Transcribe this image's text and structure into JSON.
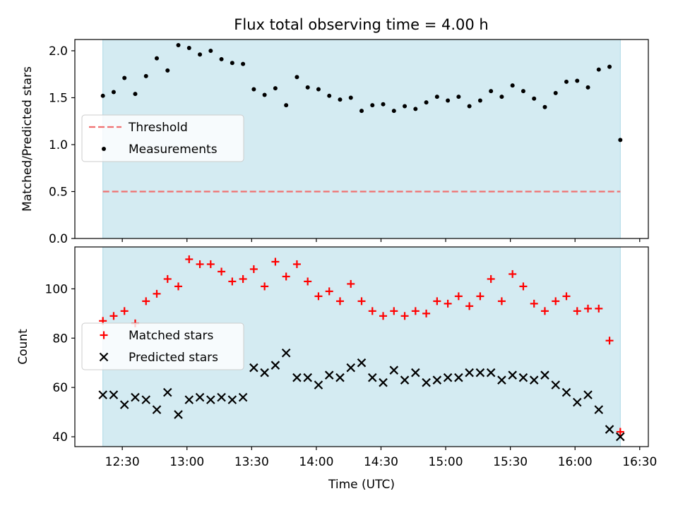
{
  "chart_data": [
    {
      "type": "scatter",
      "title": "Flux total observing time = 4.00 h",
      "xlabel": "",
      "ylabel": "Matched/Predicted stars",
      "ylim": [
        0,
        2.12
      ],
      "yticks": [
        "0.0",
        "0.5",
        "1.0",
        "1.5",
        "2.0"
      ],
      "legend_position": "center-left",
      "shaded_span": {
        "start": "12:21",
        "end": "16:21",
        "color": "#add8e6"
      },
      "threshold": {
        "name": "Threshold",
        "value": 0.5,
        "color": "#f07070",
        "style": "dashed"
      },
      "series": [
        {
          "name": "Measurements",
          "marker": "dot",
          "color": "#000000",
          "points": [
            [
              "12:21",
              1.52
            ],
            [
              "12:26",
              1.56
            ],
            [
              "12:31",
              1.71
            ],
            [
              "12:36",
              1.54
            ],
            [
              "12:41",
              1.73
            ],
            [
              "12:46",
              1.92
            ],
            [
              "12:51",
              1.79
            ],
            [
              "12:56",
              2.06
            ],
            [
              "13:01",
              2.03
            ],
            [
              "13:06",
              1.96
            ],
            [
              "13:11",
              2.0
            ],
            [
              "13:16",
              1.91
            ],
            [
              "13:21",
              1.87
            ],
            [
              "13:26",
              1.86
            ],
            [
              "13:31",
              1.59
            ],
            [
              "13:36",
              1.53
            ],
            [
              "13:41",
              1.6
            ],
            [
              "13:46",
              1.42
            ],
            [
              "13:51",
              1.72
            ],
            [
              "13:56",
              1.61
            ],
            [
              "14:01",
              1.59
            ],
            [
              "14:06",
              1.52
            ],
            [
              "14:11",
              1.48
            ],
            [
              "14:16",
              1.5
            ],
            [
              "14:21",
              1.36
            ],
            [
              "14:26",
              1.42
            ],
            [
              "14:31",
              1.43
            ],
            [
              "14:36",
              1.36
            ],
            [
              "14:41",
              1.41
            ],
            [
              "14:46",
              1.38
            ],
            [
              "14:51",
              1.45
            ],
            [
              "14:56",
              1.51
            ],
            [
              "15:01",
              1.47
            ],
            [
              "15:06",
              1.51
            ],
            [
              "15:11",
              1.41
            ],
            [
              "15:16",
              1.47
            ],
            [
              "15:21",
              1.57
            ],
            [
              "15:26",
              1.51
            ],
            [
              "15:31",
              1.63
            ],
            [
              "15:36",
              1.57
            ],
            [
              "15:41",
              1.49
            ],
            [
              "15:46",
              1.4
            ],
            [
              "15:51",
              1.55
            ],
            [
              "15:56",
              1.67
            ],
            [
              "16:01",
              1.68
            ],
            [
              "16:06",
              1.61
            ],
            [
              "16:11",
              1.8
            ],
            [
              "16:16",
              1.83
            ],
            [
              "16:21",
              1.05
            ]
          ]
        }
      ]
    },
    {
      "type": "scatter",
      "title": "",
      "xlabel": "Time (UTC)",
      "ylabel": "Count",
      "ylim": [
        36,
        117
      ],
      "yticks": [
        "40",
        "60",
        "80",
        "100"
      ],
      "xlim": [
        "12:08",
        "16:34"
      ],
      "xticks": [
        "12:30",
        "13:00",
        "13:30",
        "14:00",
        "14:30",
        "15:00",
        "15:30",
        "16:00",
        "16:30"
      ],
      "legend_position": "center-left",
      "shaded_span": {
        "start": "12:21",
        "end": "16:21",
        "color": "#add8e6"
      },
      "series": [
        {
          "name": "Matched stars",
          "marker": "plus",
          "color": "#ff0000",
          "points": [
            [
              "12:21",
              87
            ],
            [
              "12:26",
              89
            ],
            [
              "12:31",
              91
            ],
            [
              "12:36",
              86
            ],
            [
              "12:41",
              95
            ],
            [
              "12:46",
              98
            ],
            [
              "12:51",
              104
            ],
            [
              "12:56",
              101
            ],
            [
              "13:01",
              112
            ],
            [
              "13:06",
              110
            ],
            [
              "13:11",
              110
            ],
            [
              "13:16",
              107
            ],
            [
              "13:21",
              103
            ],
            [
              "13:26",
              104
            ],
            [
              "13:31",
              108
            ],
            [
              "13:36",
              101
            ],
            [
              "13:41",
              111
            ],
            [
              "13:46",
              105
            ],
            [
              "13:51",
              110
            ],
            [
              "13:56",
              103
            ],
            [
              "14:01",
              97
            ],
            [
              "14:06",
              99
            ],
            [
              "14:11",
              95
            ],
            [
              "14:16",
              102
            ],
            [
              "14:21",
              95
            ],
            [
              "14:26",
              91
            ],
            [
              "14:31",
              89
            ],
            [
              "14:36",
              91
            ],
            [
              "14:41",
              89
            ],
            [
              "14:46",
              91
            ],
            [
              "14:51",
              90
            ],
            [
              "14:56",
              95
            ],
            [
              "15:01",
              94
            ],
            [
              "15:06",
              97
            ],
            [
              "15:11",
              93
            ],
            [
              "15:16",
              97
            ],
            [
              "15:21",
              104
            ],
            [
              "15:26",
              95
            ],
            [
              "15:31",
              106
            ],
            [
              "15:36",
              101
            ],
            [
              "15:41",
              94
            ],
            [
              "15:46",
              91
            ],
            [
              "15:51",
              95
            ],
            [
              "15:56",
              97
            ],
            [
              "16:01",
              91
            ],
            [
              "16:06",
              92
            ],
            [
              "16:11",
              92
            ],
            [
              "16:16",
              79
            ],
            [
              "16:21",
              42
            ]
          ]
        },
        {
          "name": "Predicted stars",
          "marker": "x",
          "color": "#000000",
          "points": [
            [
              "12:21",
              57
            ],
            [
              "12:26",
              57
            ],
            [
              "12:31",
              53
            ],
            [
              "12:36",
              56
            ],
            [
              "12:41",
              55
            ],
            [
              "12:46",
              51
            ],
            [
              "12:51",
              58
            ],
            [
              "12:56",
              49
            ],
            [
              "13:01",
              55
            ],
            [
              "13:06",
              56
            ],
            [
              "13:11",
              55
            ],
            [
              "13:16",
              56
            ],
            [
              "13:21",
              55
            ],
            [
              "13:26",
              56
            ],
            [
              "13:31",
              68
            ],
            [
              "13:36",
              66
            ],
            [
              "13:41",
              69
            ],
            [
              "13:46",
              74
            ],
            [
              "13:51",
              64
            ],
            [
              "13:56",
              64
            ],
            [
              "14:01",
              61
            ],
            [
              "14:06",
              65
            ],
            [
              "14:11",
              64
            ],
            [
              "14:16",
              68
            ],
            [
              "14:21",
              70
            ],
            [
              "14:26",
              64
            ],
            [
              "14:31",
              62
            ],
            [
              "14:36",
              67
            ],
            [
              "14:41",
              63
            ],
            [
              "14:46",
              66
            ],
            [
              "14:51",
              62
            ],
            [
              "14:56",
              63
            ],
            [
              "15:01",
              64
            ],
            [
              "15:06",
              64
            ],
            [
              "15:11",
              66
            ],
            [
              "15:16",
              66
            ],
            [
              "15:21",
              66
            ],
            [
              "15:26",
              63
            ],
            [
              "15:31",
              65
            ],
            [
              "15:36",
              64
            ],
            [
              "15:41",
              63
            ],
            [
              "15:46",
              65
            ],
            [
              "15:51",
              61
            ],
            [
              "15:56",
              58
            ],
            [
              "16:01",
              54
            ],
            [
              "16:06",
              57
            ],
            [
              "16:11",
              51
            ],
            [
              "16:16",
              43
            ],
            [
              "16:21",
              40
            ]
          ]
        }
      ]
    }
  ]
}
